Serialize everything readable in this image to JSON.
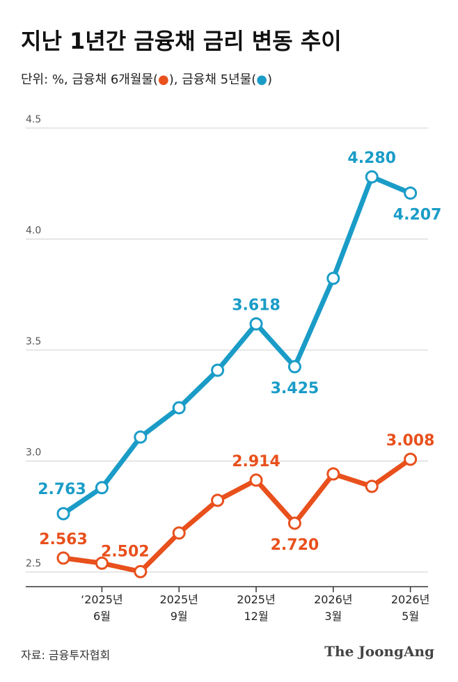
{
  "chart_data": {
    "type": "line",
    "title": "지난 1년간 금융채 금리 변동 추이",
    "subtitle": "단위: %, ",
    "legend_marker": [
      "(",
      "●",
      ")"
    ],
    "legend_separator": ", ",
    "categories": [
      null,
      "‘2025년\n6월",
      null,
      "2025년\n9월",
      null,
      "2025년\n12월",
      null,
      "2026년\n3월",
      null,
      "2026년\n5월"
    ],
    "series": [
      {
        "name": "금융채 6개월물",
        "color": "#e8501c",
        "values": [
          2.563,
          2.54,
          2.502,
          2.676,
          2.823,
          2.914,
          2.72,
          2.942,
          2.886,
          3.008
        ],
        "value_labels": [
          "2.563",
          null,
          "2.502",
          null,
          null,
          "2.914",
          "2.720",
          null,
          null,
          "3.008"
        ]
      },
      {
        "name": "금융채 5년물",
        "color": "#1a9cc7",
        "values": [
          2.763,
          2.88,
          3.108,
          3.24,
          3.409,
          3.618,
          3.425,
          3.823,
          4.28,
          4.207
        ],
        "value_labels": [
          "2.763",
          null,
          null,
          null,
          null,
          "3.618",
          "3.425",
          null,
          "4.280",
          "4.207"
        ]
      }
    ],
    "ylim": [
      2.435,
      4.55
    ],
    "yticks": [
      {
        "value": 2.5,
        "label": "2.5"
      },
      {
        "value": 3,
        "label": "3.0"
      },
      {
        "value": 3.5,
        "label": "3.5"
      },
      {
        "value": 4,
        "label": "4.0"
      },
      {
        "value": 4.5,
        "label": "4.5"
      }
    ],
    "grid": true,
    "source": "자료: 금융투자협회",
    "brand": "The JoongAng"
  }
}
